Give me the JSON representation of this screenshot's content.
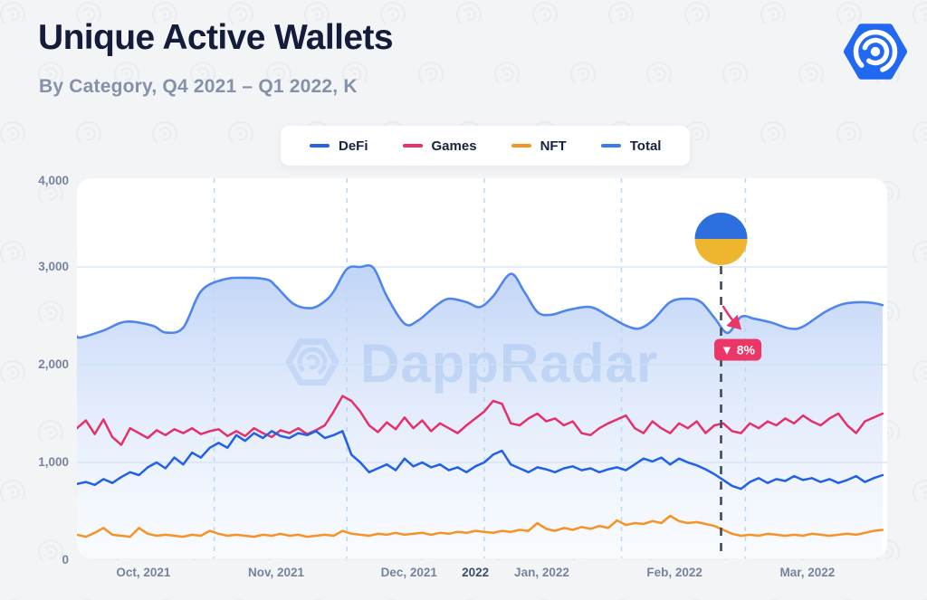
{
  "page": {
    "title": "Unique Active Wallets",
    "subtitle": "By Category, Q4 2021 – Q1 2022, K"
  },
  "brand": {
    "logo_name": "dappradar-hexagon-logo",
    "logo_color": "#2168f2",
    "watermark_text": "DappRadar"
  },
  "legend": {
    "items": [
      {
        "label": "DeFi",
        "color": "#2563eb"
      },
      {
        "label": "Games",
        "color": "#e5316b"
      },
      {
        "label": "NFT",
        "color": "#f59324"
      },
      {
        "label": "Total",
        "color": "#3b7bf0"
      }
    ]
  },
  "chart_data": {
    "type": "line",
    "title": "Unique Active Wallets",
    "subtitle": "By Category, Q4 2021 – Q1 2022, K",
    "y_unit": "thousands of unique active wallets (K)",
    "x_range_days": [
      0,
      182
    ],
    "x_tick_labels": [
      {
        "label": "Oct, 2021",
        "day": 15,
        "bold": false
      },
      {
        "label": "Nov, 2021",
        "day": 45,
        "bold": false
      },
      {
        "label": "Dec, 2021",
        "day": 75,
        "bold": false
      },
      {
        "label": "2022",
        "day": 90,
        "bold": true
      },
      {
        "label": "Jan, 2022",
        "day": 105,
        "bold": false
      },
      {
        "label": "Feb, 2022",
        "day": 135,
        "bold": false
      },
      {
        "label": "Mar, 2022",
        "day": 165,
        "bold": false
      }
    ],
    "month_boundary_days": [
      31,
      61,
      92,
      123,
      151
    ],
    "y_axis": {
      "min": 0,
      "max": 4000,
      "ticks": [
        {
          "value": 0,
          "label": "0"
        },
        {
          "value": 1000,
          "label": "1,000"
        },
        {
          "value": 2000,
          "label": "2,000"
        },
        {
          "value": 3000,
          "label": "3,000"
        },
        {
          "value": 4000,
          "label": "4,000"
        }
      ],
      "gridline_values": [
        1000,
        2000,
        3000
      ]
    },
    "series": [
      {
        "name": "Total",
        "style": "smooth-area",
        "color": "#4f86ee",
        "fill_top": "#7da6ef",
        "fill_bottom": "#dbe7fa",
        "points": [
          [
            0,
            2290
          ],
          [
            1,
            2280
          ],
          [
            6,
            2350
          ],
          [
            11,
            2440
          ],
          [
            17,
            2400
          ],
          [
            20,
            2330
          ],
          [
            24,
            2380
          ],
          [
            28,
            2750
          ],
          [
            33,
            2870
          ],
          [
            38,
            2890
          ],
          [
            43,
            2870
          ],
          [
            45,
            2800
          ],
          [
            49,
            2620
          ],
          [
            53,
            2580
          ],
          [
            56,
            2650
          ],
          [
            58,
            2750
          ],
          [
            61,
            2980
          ],
          [
            64,
            3000
          ],
          [
            67,
            2990
          ],
          [
            70,
            2700
          ],
          [
            74,
            2420
          ],
          [
            77,
            2450
          ],
          [
            81,
            2600
          ],
          [
            84,
            2675
          ],
          [
            88,
            2640
          ],
          [
            91,
            2590
          ],
          [
            94,
            2700
          ],
          [
            98,
            2930
          ],
          [
            101,
            2750
          ],
          [
            104,
            2540
          ],
          [
            107,
            2510
          ],
          [
            111,
            2560
          ],
          [
            116,
            2590
          ],
          [
            120,
            2500
          ],
          [
            124,
            2400
          ],
          [
            127,
            2370
          ],
          [
            130,
            2450
          ],
          [
            134,
            2640
          ],
          [
            138,
            2675
          ],
          [
            141,
            2640
          ],
          [
            144,
            2480
          ],
          [
            147,
            2325
          ],
          [
            150,
            2490
          ],
          [
            153,
            2470
          ],
          [
            157,
            2430
          ],
          [
            161,
            2370
          ],
          [
            164,
            2390
          ],
          [
            169,
            2540
          ],
          [
            173,
            2620
          ],
          [
            177,
            2640
          ],
          [
            180,
            2630
          ],
          [
            182,
            2610
          ]
        ]
      },
      {
        "name": "Games",
        "style": "jagged",
        "color": "#e5316b",
        "day_step": 2,
        "values": [
          1350,
          1430,
          1290,
          1440,
          1260,
          1180,
          1350,
          1300,
          1250,
          1330,
          1280,
          1340,
          1300,
          1350,
          1290,
          1320,
          1340,
          1270,
          1320,
          1270,
          1350,
          1300,
          1260,
          1330,
          1300,
          1350,
          1290,
          1330,
          1380,
          1520,
          1680,
          1630,
          1520,
          1380,
          1310,
          1410,
          1340,
          1460,
          1350,
          1430,
          1320,
          1400,
          1350,
          1300,
          1380,
          1450,
          1520,
          1630,
          1600,
          1400,
          1380,
          1450,
          1500,
          1420,
          1450,
          1380,
          1420,
          1300,
          1280,
          1350,
          1400,
          1440,
          1480,
          1350,
          1300,
          1420,
          1350,
          1300,
          1400,
          1350,
          1420,
          1300,
          1380,
          1400,
          1320,
          1300,
          1400,
          1350,
          1420,
          1380,
          1450,
          1400,
          1480,
          1420,
          1380,
          1450,
          1500,
          1380,
          1300,
          1420,
          1460,
          1500
        ]
      },
      {
        "name": "DeFi",
        "style": "jagged",
        "color": "#2160e8",
        "day_step": 2,
        "values": [
          780,
          800,
          770,
          830,
          790,
          850,
          900,
          870,
          950,
          1000,
          940,
          1050,
          980,
          1100,
          1050,
          1150,
          1200,
          1150,
          1280,
          1220,
          1300,
          1250,
          1320,
          1270,
          1250,
          1300,
          1280,
          1320,
          1250,
          1280,
          1320,
          1080,
          1000,
          900,
          940,
          980,
          920,
          1040,
          960,
          1000,
          950,
          980,
          920,
          950,
          900,
          960,
          1000,
          1080,
          1120,
          980,
          940,
          900,
          950,
          930,
          900,
          940,
          960,
          920,
          940,
          900,
          930,
          950,
          920,
          980,
          1040,
          1010,
          1050,
          980,
          1040,
          1000,
          970,
          930,
          880,
          820,
          760,
          730,
          800,
          840,
          790,
          830,
          810,
          860,
          820,
          840,
          800,
          830,
          790,
          820,
          860,
          800,
          840,
          870
        ]
      },
      {
        "name": "NFT",
        "style": "jagged",
        "color": "#f59324",
        "day_step": 2,
        "values": [
          260,
          240,
          280,
          330,
          260,
          250,
          240,
          330,
          270,
          250,
          260,
          250,
          240,
          260,
          250,
          300,
          270,
          250,
          260,
          250,
          240,
          260,
          250,
          270,
          250,
          260,
          240,
          250,
          260,
          250,
          300,
          270,
          260,
          250,
          270,
          260,
          280,
          260,
          270,
          280,
          260,
          280,
          270,
          290,
          280,
          300,
          290,
          280,
          300,
          290,
          310,
          300,
          380,
          320,
          300,
          330,
          310,
          340,
          320,
          350,
          330,
          407,
          360,
          380,
          370,
          400,
          380,
          454,
          400,
          380,
          390,
          370,
          350,
          310,
          270,
          250,
          260,
          250,
          270,
          260,
          250,
          260,
          250,
          270,
          260,
          250,
          260,
          270,
          260,
          280,
          300,
          310
        ]
      }
    ],
    "annotation": {
      "event_day": 145.5,
      "marker": "ukraine-flag",
      "flag_colors": {
        "top": "#2e6fe0",
        "bottom": "#eeb62f"
      },
      "badge_label": "▼ 8%",
      "badge_color": "#ea3768",
      "line_color": "#3d4960"
    }
  }
}
